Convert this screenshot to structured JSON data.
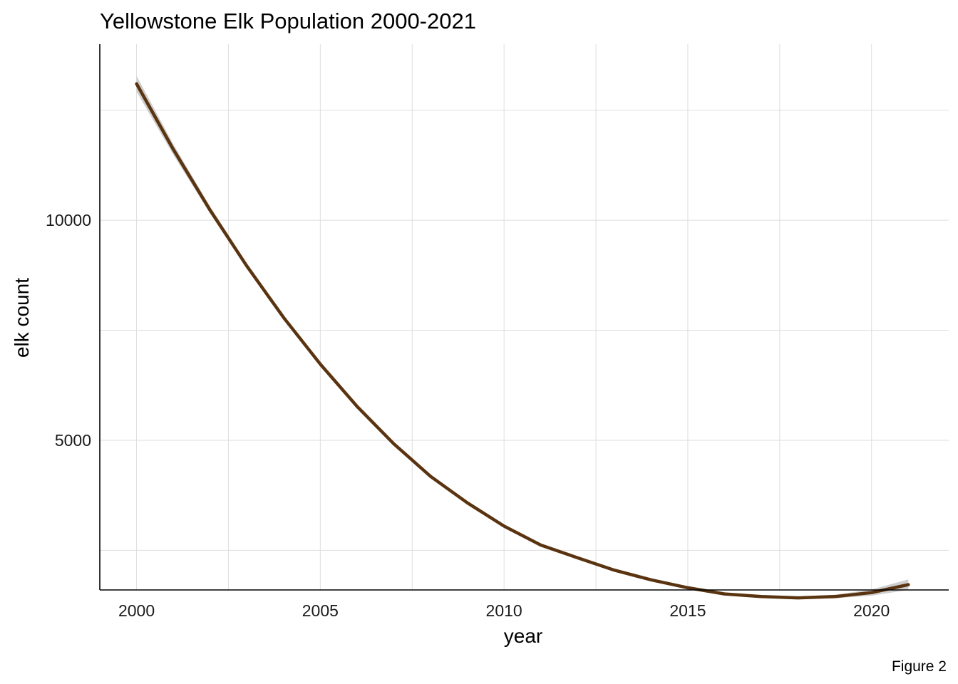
{
  "chart_data": {
    "type": "line",
    "title": "Yellowstone Elk Population 2000-2021",
    "xlabel": "year",
    "ylabel": "elk count",
    "caption": "Figure 2",
    "xlim": [
      1999,
      2022.1
    ],
    "ylim": [
      1600,
      14000
    ],
    "x_ticks": [
      2000,
      2005,
      2010,
      2015,
      2020
    ],
    "y_ticks": [
      5000,
      10000
    ],
    "y_minor_gridlines": [
      2500,
      7500,
      12500
    ],
    "x_minor_gridlines": [
      2002.5,
      2007.5,
      2012.5,
      2017.5
    ],
    "grid": true,
    "legend": "none",
    "line_color": "#5a3410",
    "band_color": "#c9c9c9",
    "series": [
      {
        "x": [
          2000,
          2001,
          2002,
          2003,
          2004,
          2005,
          2006,
          2007,
          2008,
          2009,
          2010,
          2011,
          2012,
          2013,
          2014,
          2015,
          2016,
          2017,
          2018,
          2019,
          2020,
          2021
        ],
        "values": [
          13100,
          11610,
          10230,
          8960,
          7790,
          6730,
          5770,
          4920,
          4180,
          3580,
          3050,
          2620,
          2330,
          2050,
          1830,
          1650,
          1510,
          1450,
          1420,
          1450,
          1540,
          1720
        ],
        "band_lower": [
          12920,
          11490,
          10150,
          8900,
          7740,
          6690,
          5740,
          4890,
          4150,
          3550,
          3020,
          2590,
          2300,
          2020,
          1800,
          1620,
          1480,
          1420,
          1390,
          1410,
          1470,
          1600
        ],
        "band_upper": [
          13280,
          11730,
          10310,
          9020,
          7840,
          6770,
          5800,
          4950,
          4210,
          3610,
          3080,
          2650,
          2360,
          2080,
          1860,
          1680,
          1540,
          1480,
          1450,
          1490,
          1610,
          1840
        ]
      }
    ]
  }
}
